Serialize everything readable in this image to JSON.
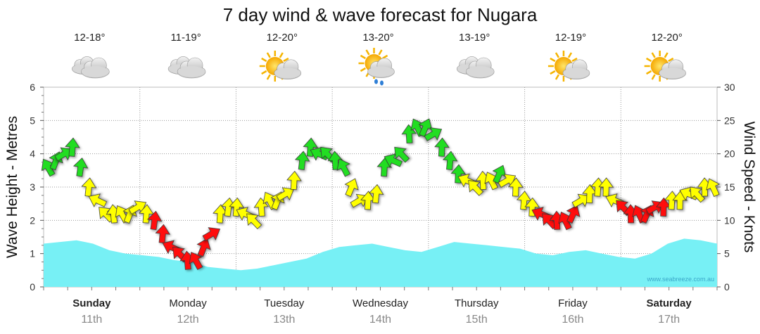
{
  "chart_data": {
    "type": "line",
    "title": "7 day wind & wave forecast for Nugara",
    "left_axis": {
      "label": "Wave Height - Metres",
      "ticks": [
        0,
        1,
        2,
        3,
        4,
        5,
        6
      ],
      "range": [
        0,
        6
      ]
    },
    "right_axis": {
      "label": "Wind Speed - Knots",
      "ticks": [
        0,
        5,
        10,
        15,
        20,
        25,
        30
      ],
      "range": [
        0,
        30
      ]
    },
    "days": [
      {
        "name": "Sunday",
        "date": "11th",
        "temp": "12-18°",
        "icon": "cloudy-icon",
        "bold": true
      },
      {
        "name": "Monday",
        "date": "12th",
        "temp": "11-19°",
        "icon": "cloudy-icon",
        "bold": false
      },
      {
        "name": "Tuesday",
        "date": "13th",
        "temp": "12-20°",
        "icon": "partly-sunny-icon",
        "bold": false
      },
      {
        "name": "Wednesday",
        "date": "14th",
        "temp": "13-20°",
        "icon": "sun-shower-icon",
        "bold": false
      },
      {
        "name": "Thursday",
        "date": "15th",
        "temp": "13-19°",
        "icon": "cloudy-icon",
        "bold": false
      },
      {
        "name": "Friday",
        "date": "16th",
        "temp": "12-19°",
        "icon": "partly-sunny-icon",
        "bold": false
      },
      {
        "name": "Saturday",
        "date": "17th",
        "temp": "12-20°",
        "icon": "partly-sunny-icon",
        "bold": true
      }
    ],
    "wave_height_m": [
      1.3,
      1.35,
      1.4,
      1.3,
      1.1,
      1.0,
      0.95,
      0.9,
      0.8,
      0.75,
      0.6,
      0.55,
      0.5,
      0.55,
      0.65,
      0.75,
      0.85,
      1.05,
      1.2,
      1.25,
      1.3,
      1.2,
      1.1,
      1.05,
      1.2,
      1.35,
      1.3,
      1.25,
      1.2,
      1.15,
      1.0,
      0.95,
      1.05,
      1.1,
      1.0,
      0.9,
      0.85,
      1.0,
      1.3,
      1.45,
      1.4,
      1.3
    ],
    "wind_knots": [
      18,
      19,
      20,
      21,
      18,
      15,
      13,
      11,
      11,
      11,
      11,
      12,
      11,
      10,
      8,
      6,
      5,
      4,
      4,
      6,
      8,
      11,
      12,
      12,
      11,
      10,
      12,
      13,
      13,
      14,
      16,
      19,
      21,
      20,
      20,
      19,
      18,
      15,
      13,
      13,
      14,
      18,
      19,
      20,
      23,
      24,
      24,
      23,
      21,
      19,
      17,
      16,
      15,
      16,
      16,
      17,
      16,
      15,
      13,
      12,
      11,
      10,
      10,
      10,
      11,
      13,
      14,
      15,
      15,
      13,
      12,
      11,
      11,
      11,
      12,
      12,
      13,
      13,
      14,
      14,
      15,
      15
    ],
    "wind_colors": {
      "light": "#22dd22",
      "moderate": "#ffff00",
      "strong": "#ff1111"
    },
    "wave_fill": "#77f0f5",
    "credit": "www.seabreeze.com.au"
  }
}
